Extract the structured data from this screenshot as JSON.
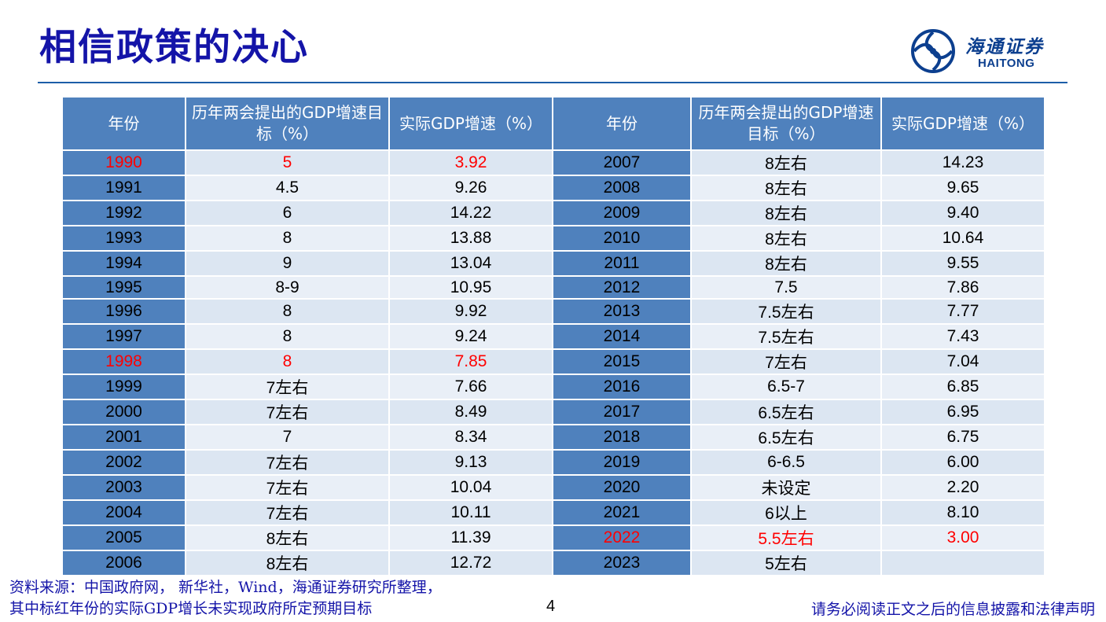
{
  "title": "相信政策的决心",
  "logo": {
    "cn": "海通证券",
    "en": "HAITONG",
    "color": "#0c3f8f"
  },
  "table": {
    "headers": [
      "年份",
      "历年两会提出的GDP增速目标（%）",
      "实际GDP增速（%）",
      "年份",
      "历年两会提出的GDP增速目标（%）",
      "实际GDP增速（%）"
    ],
    "rows": [
      {
        "y1": "1990",
        "t1": "5",
        "a1": "3.92",
        "r1": true,
        "y2": "2007",
        "t2": "8左右",
        "a2": "14.23",
        "r2": false
      },
      {
        "y1": "1991",
        "t1": "4.5",
        "a1": "9.26",
        "r1": false,
        "y2": "2008",
        "t2": "8左右",
        "a2": "9.65",
        "r2": false
      },
      {
        "y1": "1992",
        "t1": "6",
        "a1": "14.22",
        "r1": false,
        "y2": "2009",
        "t2": "8左右",
        "a2": "9.40",
        "r2": false
      },
      {
        "y1": "1993",
        "t1": "8",
        "a1": "13.88",
        "r1": false,
        "y2": "2010",
        "t2": "8左右",
        "a2": "10.64",
        "r2": false
      },
      {
        "y1": "1994",
        "t1": "9",
        "a1": "13.04",
        "r1": false,
        "y2": "2011",
        "t2": "8左右",
        "a2": "9.55",
        "r2": false
      },
      {
        "y1": "1995",
        "t1": "8-9",
        "a1": "10.95",
        "r1": false,
        "y2": "2012",
        "t2": "7.5",
        "a2": "7.86",
        "r2": false
      },
      {
        "y1": "1996",
        "t1": "8",
        "a1": "9.92",
        "r1": false,
        "y2": "2013",
        "t2": "7.5左右",
        "a2": "7.77",
        "r2": false
      },
      {
        "y1": "1997",
        "t1": "8",
        "a1": "9.24",
        "r1": false,
        "y2": "2014",
        "t2": "7.5左右",
        "a2": "7.43",
        "r2": false
      },
      {
        "y1": "1998",
        "t1": "8",
        "a1": "7.85",
        "r1": true,
        "y2": "2015",
        "t2": "7左右",
        "a2": "7.04",
        "r2": false
      },
      {
        "y1": "1999",
        "t1": "7左右",
        "a1": "7.66",
        "r1": false,
        "y2": "2016",
        "t2": "6.5-7",
        "a2": "6.85",
        "r2": false
      },
      {
        "y1": "2000",
        "t1": "7左右",
        "a1": "8.49",
        "r1": false,
        "y2": "2017",
        "t2": "6.5左右",
        "a2": "6.95",
        "r2": false
      },
      {
        "y1": "2001",
        "t1": "7",
        "a1": "8.34",
        "r1": false,
        "y2": "2018",
        "t2": "6.5左右",
        "a2": "6.75",
        "r2": false
      },
      {
        "y1": "2002",
        "t1": "7左右",
        "a1": "9.13",
        "r1": false,
        "y2": "2019",
        "t2": "6-6.5",
        "a2": "6.00",
        "r2": false
      },
      {
        "y1": "2003",
        "t1": "7左右",
        "a1": "10.04",
        "r1": false,
        "y2": "2020",
        "t2": "未设定",
        "a2": "2.20",
        "r2": false
      },
      {
        "y1": "2004",
        "t1": "7左右",
        "a1": "10.11",
        "r1": false,
        "y2": "2021",
        "t2": "6以上",
        "a2": "8.10",
        "r2": false
      },
      {
        "y1": "2005",
        "t1": "8左右",
        "a1": "11.39",
        "r1": false,
        "y2": "2022",
        "t2": "5.5左右",
        "a2": "3.00",
        "r2": true
      },
      {
        "y1": "2006",
        "t1": "8左右",
        "a1": "12.72",
        "r1": false,
        "y2": "2023",
        "t2": "5左右",
        "a2": "",
        "r2": false
      }
    ]
  },
  "footer": {
    "source_line1": "资料来源：中国政府网， 新华社，Wind，海通证券研究所整理，",
    "source_line2": "其中标红年份的实际GDP增长未实现政府所定预期目标",
    "page": "4",
    "disclaimer": "请务必阅读正文之后的信息披露和法律声明"
  },
  "colors": {
    "title": "#1414a8",
    "header_bg": "#4f81bd",
    "cell_bg": "#dce6f2",
    "highlight": "#ff0000",
    "rule": "#1c5ea8"
  }
}
